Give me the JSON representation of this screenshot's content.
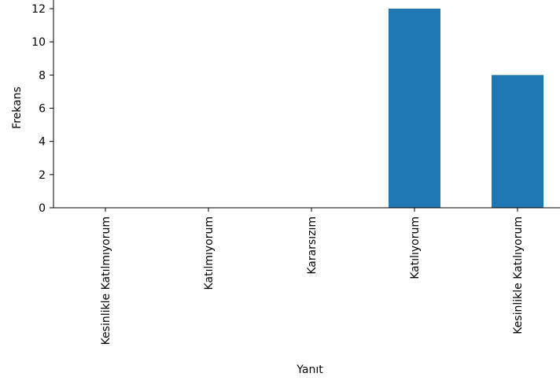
{
  "chart_data": {
    "type": "bar",
    "categories": [
      "Kesinlikle Katılmıyorum",
      "Katılmıyorum",
      "Kararsızım",
      "Katılıyorum",
      "Kesinlikle Katılıyorum"
    ],
    "values": [
      0,
      0,
      0,
      12,
      8
    ],
    "xlabel": "Yanıt",
    "ylabel": "Frekans",
    "ylim": [
      0,
      12
    ],
    "yticks": [
      0,
      2,
      4,
      6,
      8,
      10,
      12
    ],
    "bar_color": "#1f77b4",
    "grid": false,
    "spines": "left-bottom"
  }
}
